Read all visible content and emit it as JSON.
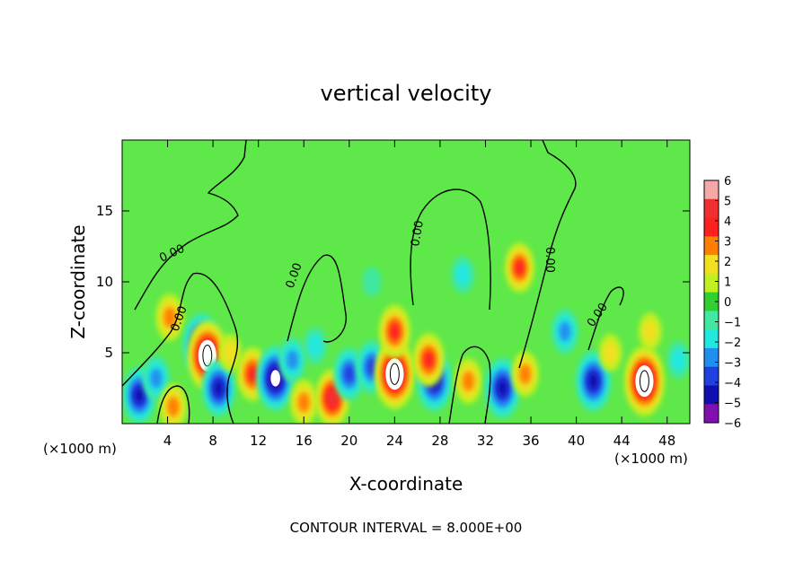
{
  "chart_data": {
    "type": "heatmap",
    "title": "vertical velocity",
    "xlabel": "X-coordinate",
    "ylabel": "Z-coordinate",
    "x_unit": "(×1000 m)",
    "y_unit": "(×1000 m)",
    "footer": "CONTOUR INTERVAL = 8.000E+00",
    "xlim": [
      0,
      50
    ],
    "ylim": [
      0,
      20
    ],
    "x_ticks": [
      4,
      8,
      12,
      16,
      20,
      24,
      28,
      32,
      36,
      40,
      44,
      48
    ],
    "y_ticks": [
      5,
      10,
      15
    ],
    "contour_labels": [
      "0.00",
      "0.00",
      "0.00",
      "0.00",
      "0.00",
      "0.00"
    ],
    "colorbar": {
      "levels": [
        "6",
        "5",
        "4",
        "3",
        "2",
        "1",
        "0",
        "−1",
        "−2",
        "−3",
        "−4",
        "−5",
        "−6"
      ],
      "colors": [
        "#f4a8a8",
        "#f03030",
        "#ff2020",
        "#ff8000",
        "#f0e020",
        "#c0f020",
        "#30d030",
        "#40e8a0",
        "#20e8e0",
        "#2090f0",
        "#2040e0",
        "#1010b0",
        "#8010b0"
      ],
      "range": [
        -6,
        6
      ]
    },
    "background_color": "#5fe84a",
    "features": [
      {
        "x": 1.5,
        "z": 2.0,
        "value": -4.5
      },
      {
        "x": 3.0,
        "z": 3.2,
        "value": -3.0
      },
      {
        "x": 4.2,
        "z": 7.5,
        "value": 3.2
      },
      {
        "x": 4.5,
        "z": 1.2,
        "value": 3.0
      },
      {
        "x": 7.0,
        "z": 5.5,
        "value": -5.5
      },
      {
        "x": 7.5,
        "z": 4.8,
        "value": 6.0
      },
      {
        "x": 8.5,
        "z": 2.5,
        "value": -4.5
      },
      {
        "x": 9.5,
        "z": 5.0,
        "value": 2.0
      },
      {
        "x": 11.5,
        "z": 3.5,
        "value": 4.0
      },
      {
        "x": 13.5,
        "z": 3.2,
        "value": -5.5
      },
      {
        "x": 15.0,
        "z": 4.5,
        "value": -3.0
      },
      {
        "x": 16.0,
        "z": 1.5,
        "value": 3.0
      },
      {
        "x": 18.5,
        "z": 1.8,
        "value": 4.5
      },
      {
        "x": 17.0,
        "z": 5.5,
        "value": -2.0
      },
      {
        "x": 20.0,
        "z": 3.5,
        "value": -4.0
      },
      {
        "x": 22.0,
        "z": 4.0,
        "value": -4.0
      },
      {
        "x": 24.0,
        "z": 3.5,
        "value": 6.0
      },
      {
        "x": 24.0,
        "z": 6.5,
        "value": 4.0
      },
      {
        "x": 27.5,
        "z": 3.0,
        "value": -5.0
      },
      {
        "x": 27.0,
        "z": 4.5,
        "value": 4.0
      },
      {
        "x": 30.0,
        "z": 10.5,
        "value": -2.0
      },
      {
        "x": 30.5,
        "z": 3.0,
        "value": 3.0
      },
      {
        "x": 33.5,
        "z": 2.5,
        "value": -5.0
      },
      {
        "x": 35.0,
        "z": 11.0,
        "value": 3.5
      },
      {
        "x": 35.5,
        "z": 3.5,
        "value": 3.0
      },
      {
        "x": 39.0,
        "z": 6.5,
        "value": -3.0
      },
      {
        "x": 41.5,
        "z": 3.0,
        "value": -5.0
      },
      {
        "x": 43.0,
        "z": 5.0,
        "value": 2.0
      },
      {
        "x": 46.0,
        "z": 3.0,
        "value": 6.0
      },
      {
        "x": 46.5,
        "z": 6.5,
        "value": 2.0
      },
      {
        "x": 49.0,
        "z": 4.5,
        "value": -2.0
      },
      {
        "x": 22.0,
        "z": 10.0,
        "value": -1.0
      }
    ]
  }
}
